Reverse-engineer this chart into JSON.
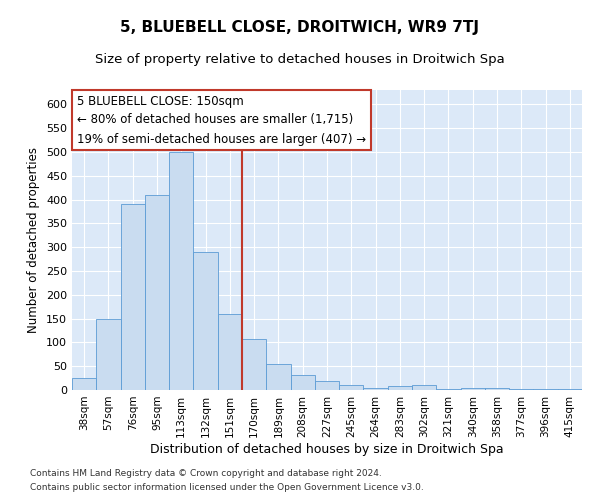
{
  "title": "5, BLUEBELL CLOSE, DROITWICH, WR9 7TJ",
  "subtitle": "Size of property relative to detached houses in Droitwich Spa",
  "xlabel": "Distribution of detached houses by size in Droitwich Spa",
  "ylabel": "Number of detached properties",
  "footnote1": "Contains HM Land Registry data © Crown copyright and database right 2024.",
  "footnote2": "Contains public sector information licensed under the Open Government Licence v3.0.",
  "categories": [
    "38sqm",
    "57sqm",
    "76sqm",
    "95sqm",
    "113sqm",
    "132sqm",
    "151sqm",
    "170sqm",
    "189sqm",
    "208sqm",
    "227sqm",
    "245sqm",
    "264sqm",
    "283sqm",
    "302sqm",
    "321sqm",
    "340sqm",
    "358sqm",
    "377sqm",
    "396sqm",
    "415sqm"
  ],
  "values": [
    25,
    150,
    390,
    410,
    500,
    290,
    160,
    108,
    55,
    32,
    18,
    10,
    5,
    8,
    10,
    2,
    5,
    5,
    3,
    3,
    3
  ],
  "bar_color": "#c9dcf0",
  "bar_edge_color": "#5b9bd5",
  "vline_color": "#c0392b",
  "vline_x_index": 6,
  "annotation_text": "5 BLUEBELL CLOSE: 150sqm\n← 80% of detached houses are smaller (1,715)\n19% of semi-detached houses are larger (407) →",
  "annotation_box_color": "#ffffff",
  "annotation_box_edge": "#c0392b",
  "ylim": [
    0,
    630
  ],
  "yticks": [
    0,
    50,
    100,
    150,
    200,
    250,
    300,
    350,
    400,
    450,
    500,
    550,
    600
  ],
  "plot_bg_color": "#dce9f8",
  "grid_color": "#ffffff",
  "fig_bg_color": "#ffffff",
  "title_fontsize": 11,
  "subtitle_fontsize": 9.5,
  "xlabel_fontsize": 9,
  "ylabel_fontsize": 8.5,
  "ytick_fontsize": 8,
  "xtick_fontsize": 7.5,
  "annotation_fontsize": 8.5,
  "footnote_fontsize": 6.5
}
